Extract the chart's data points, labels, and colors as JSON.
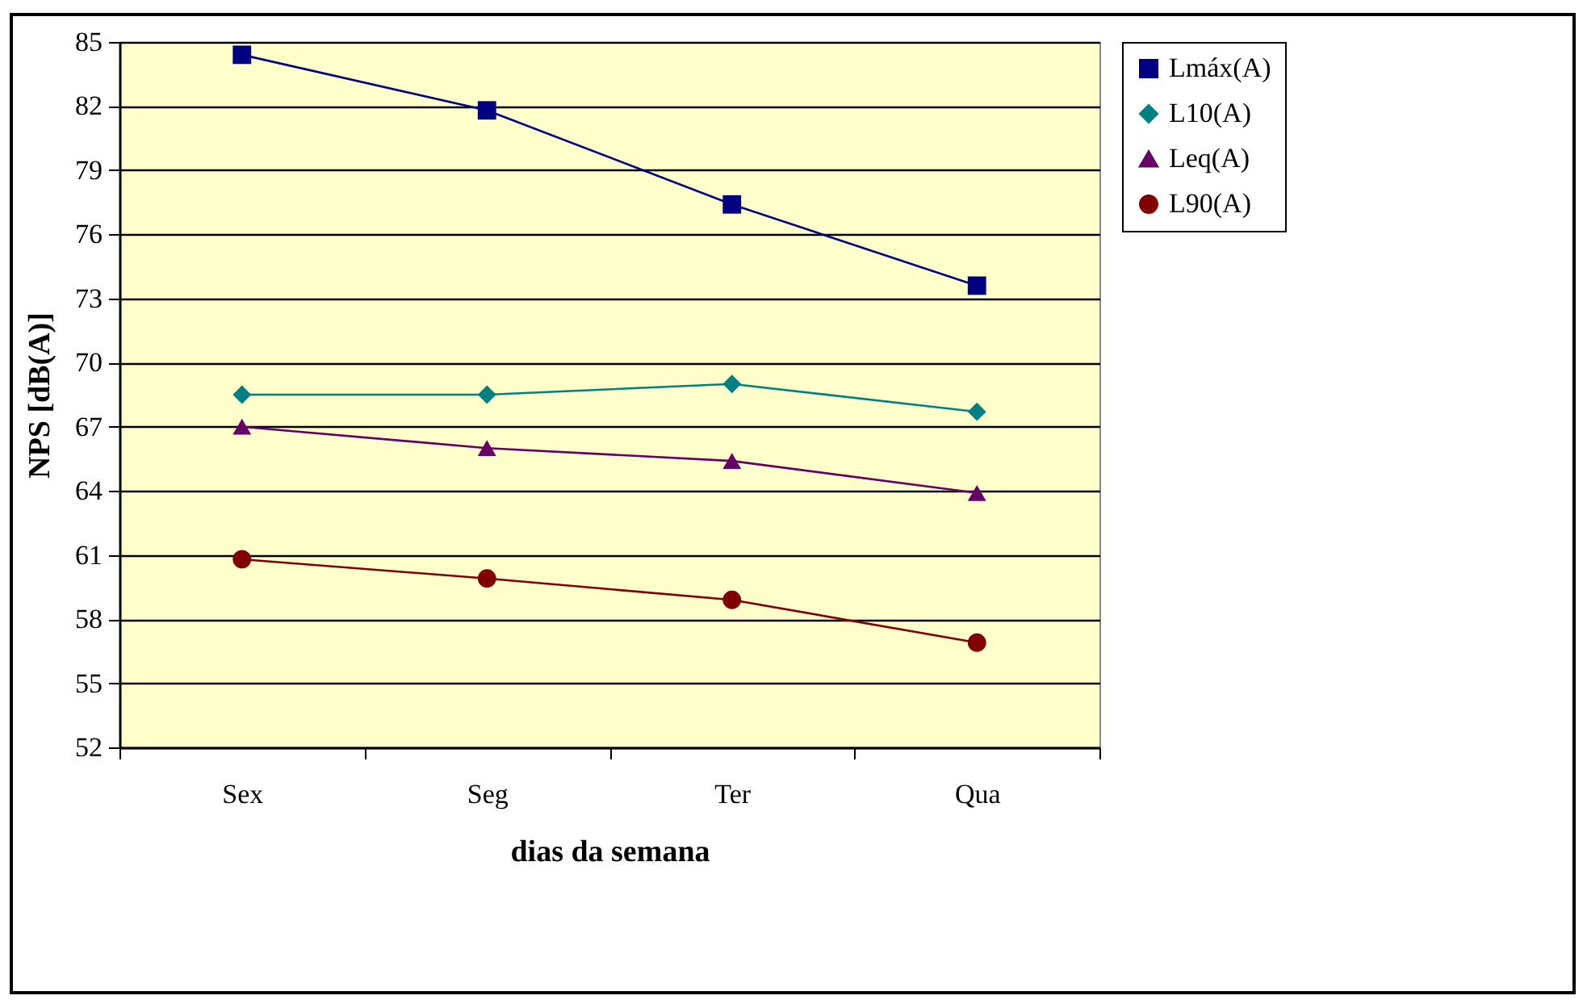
{
  "chart_data": {
    "type": "line",
    "xlabel": "dias da semana",
    "ylabel": "NPS [dB(A)]",
    "categories": [
      "Sex",
      "Seg",
      "Ter",
      "Qua"
    ],
    "series": [
      {
        "name": "Lmáx(A)",
        "color": "#000080",
        "marker": "square",
        "values": [
          84.4,
          81.8,
          77.4,
          73.6
        ]
      },
      {
        "name": "L10(A)",
        "color": "#008080",
        "marker": "diamond",
        "values": [
          68.5,
          68.5,
          69.0,
          67.7
        ]
      },
      {
        "name": "Leq(A)",
        "color": "#660066",
        "marker": "triangle",
        "values": [
          67.0,
          66.0,
          65.4,
          63.9
        ]
      },
      {
        "name": "L90(A)",
        "color": "#800000",
        "marker": "circle",
        "values": [
          60.8,
          59.9,
          58.9,
          56.9
        ]
      }
    ],
    "ylim": [
      52,
      85
    ],
    "yticks": [
      52,
      55,
      58,
      61,
      64,
      67,
      70,
      73,
      76,
      79,
      82,
      85
    ],
    "grid": "y",
    "legend": "right"
  }
}
